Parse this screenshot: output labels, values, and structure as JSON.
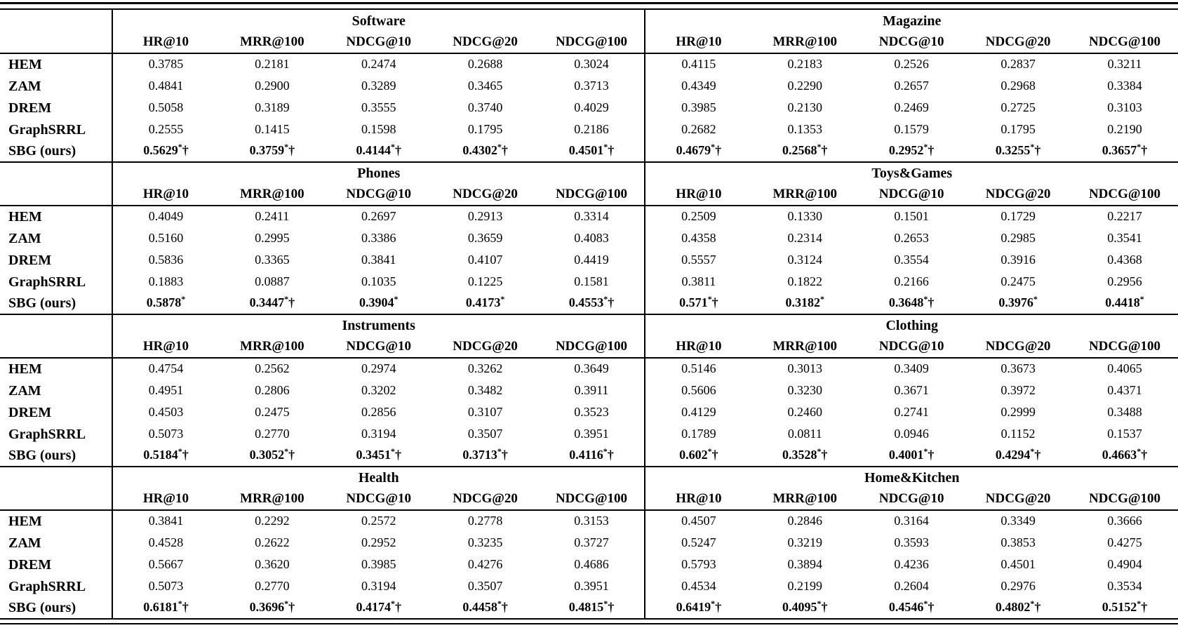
{
  "table": {
    "methods": [
      "HEM",
      "ZAM",
      "DREM",
      "GraphSRRL",
      "SBG (ours)"
    ],
    "metrics": [
      "HR@10",
      "MRR@100",
      "NDCG@10",
      "NDCG@20",
      "NDCG@100"
    ],
    "significance_markers": {
      "asterisk": "*",
      "dagger": "†"
    },
    "blocks": [
      {
        "datasets": [
          {
            "name": "Software",
            "rows": [
              [
                "0.3785",
                "0.2181",
                "0.2474",
                "0.2688",
                "0.3024"
              ],
              [
                "0.4841",
                "0.2900",
                "0.3289",
                "0.3465",
                "0.3713"
              ],
              [
                "0.5058",
                "0.3189",
                "0.3555",
                "0.3740",
                "0.4029"
              ],
              [
                "0.2555",
                "0.1415",
                "0.1598",
                "0.1795",
                "0.2186"
              ],
              [
                "0.5629*†",
                "0.3759*†",
                "0.4144*†",
                "0.4302*†",
                "0.4501*†"
              ]
            ]
          },
          {
            "name": "Magazine",
            "rows": [
              [
                "0.4115",
                "0.2183",
                "0.2526",
                "0.2837",
                "0.3211"
              ],
              [
                "0.4349",
                "0.2290",
                "0.2657",
                "0.2968",
                "0.3384"
              ],
              [
                "0.3985",
                "0.2130",
                "0.2469",
                "0.2725",
                "0.3103"
              ],
              [
                "0.2682",
                "0.1353",
                "0.1579",
                "0.1795",
                "0.2190"
              ],
              [
                "0.4679*†",
                "0.2568*†",
                "0.2952*†",
                "0.3255*†",
                "0.3657*†"
              ]
            ]
          }
        ]
      },
      {
        "datasets": [
          {
            "name": "Phones",
            "rows": [
              [
                "0.4049",
                "0.2411",
                "0.2697",
                "0.2913",
                "0.3314"
              ],
              [
                "0.5160",
                "0.2995",
                "0.3386",
                "0.3659",
                "0.4083"
              ],
              [
                "0.5836",
                "0.3365",
                "0.3841",
                "0.4107",
                "0.4419"
              ],
              [
                "0.1883",
                "0.0887",
                "0.1035",
                "0.1225",
                "0.1581"
              ],
              [
                "0.5878*",
                "0.3447*†",
                "0.3904*",
                "0.4173*",
                "0.4553*†"
              ]
            ]
          },
          {
            "name": "Toys&Games",
            "rows": [
              [
                "0.2509",
                "0.1330",
                "0.1501",
                "0.1729",
                "0.2217"
              ],
              [
                "0.4358",
                "0.2314",
                "0.2653",
                "0.2985",
                "0.3541"
              ],
              [
                "0.5557",
                "0.3124",
                "0.3554",
                "0.3916",
                "0.4368"
              ],
              [
                "0.3811",
                "0.1822",
                "0.2166",
                "0.2475",
                "0.2956"
              ],
              [
                "0.571*†",
                "0.3182*",
                "0.3648*†",
                "0.3976*",
                "0.4418*"
              ]
            ]
          }
        ]
      },
      {
        "datasets": [
          {
            "name": "Instruments",
            "rows": [
              [
                "0.4754",
                "0.2562",
                "0.2974",
                "0.3262",
                "0.3649"
              ],
              [
                "0.4951",
                "0.2806",
                "0.3202",
                "0.3482",
                "0.3911"
              ],
              [
                "0.4503",
                "0.2475",
                "0.2856",
                "0.3107",
                "0.3523"
              ],
              [
                "0.5073",
                "0.2770",
                "0.3194",
                "0.3507",
                "0.3951"
              ],
              [
                "0.5184*†",
                "0.3052*†",
                "0.3451*†",
                "0.3713*†",
                "0.4116*†"
              ]
            ]
          },
          {
            "name": "Clothing",
            "rows": [
              [
                "0.5146",
                "0.3013",
                "0.3409",
                "0.3673",
                "0.4065"
              ],
              [
                "0.5606",
                "0.3230",
                "0.3671",
                "0.3972",
                "0.4371"
              ],
              [
                "0.4129",
                "0.2460",
                "0.2741",
                "0.2999",
                "0.3488"
              ],
              [
                "0.1789",
                "0.0811",
                "0.0946",
                "0.1152",
                "0.1537"
              ],
              [
                "0.602*†",
                "0.3528*†",
                "0.4001*†",
                "0.4294*†",
                "0.4663*†"
              ]
            ]
          }
        ]
      },
      {
        "datasets": [
          {
            "name": "Health",
            "rows": [
              [
                "0.3841",
                "0.2292",
                "0.2572",
                "0.2778",
                "0.3153"
              ],
              [
                "0.4528",
                "0.2622",
                "0.2952",
                "0.3235",
                "0.3727"
              ],
              [
                "0.5667",
                "0.3620",
                "0.3985",
                "0.4276",
                "0.4686"
              ],
              [
                "0.5073",
                "0.2770",
                "0.3194",
                "0.3507",
                "0.3951"
              ],
              [
                "0.6181*†",
                "0.3696*†",
                "0.4174*†",
                "0.4458*†",
                "0.4815*†"
              ]
            ]
          },
          {
            "name": "Home&Kitchen",
            "rows": [
              [
                "0.4507",
                "0.2846",
                "0.3164",
                "0.3349",
                "0.3666"
              ],
              [
                "0.5247",
                "0.3219",
                "0.3593",
                "0.3853",
                "0.4275"
              ],
              [
                "0.5793",
                "0.3894",
                "0.4236",
                "0.4501",
                "0.4904"
              ],
              [
                "0.4534",
                "0.2199",
                "0.2604",
                "0.2976",
                "0.3534"
              ],
              [
                "0.6419*†",
                "0.4095*†",
                "0.4546*†",
                "0.4802*†",
                "0.5152*†"
              ]
            ]
          }
        ]
      }
    ]
  }
}
